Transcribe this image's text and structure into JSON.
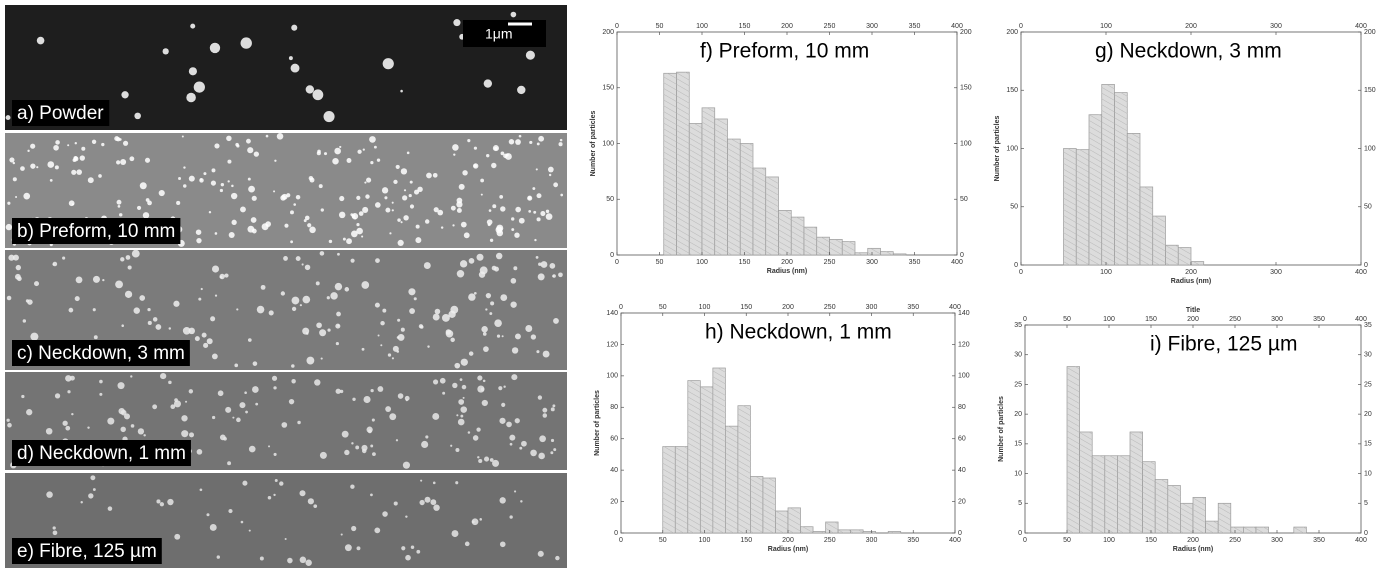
{
  "images": {
    "scale_bar": "1μm",
    "panels": [
      "a) Powder",
      "b) Preform, 10 mm",
      "c) Neckdown, 3 mm",
      "d) Neckdown, 1 mm",
      "e) Fibre, 125 µm"
    ]
  },
  "chart_data": [
    {
      "type": "histogram",
      "title": "f) Preform, 10 mm",
      "x_label": "Radius (nm)",
      "y_label": "Number of particles",
      "color": "#dcdcdc",
      "bins": [
        55,
        70,
        85,
        100,
        115,
        130,
        145,
        160,
        175,
        190,
        205,
        220,
        235,
        250,
        265,
        280,
        295,
        310,
        325,
        340
      ],
      "values": [
        163,
        164,
        118,
        132,
        122,
        104,
        100,
        78,
        70,
        40,
        34,
        25,
        16,
        14,
        12,
        2,
        6,
        3,
        1
      ],
      "xlim": [
        0,
        400
      ],
      "xticks": [
        0,
        50,
        100,
        150,
        200,
        250,
        300,
        350,
        400
      ],
      "ylim": [
        0,
        200
      ],
      "yticks": [
        0,
        50,
        100,
        150,
        200
      ]
    },
    {
      "type": "histogram",
      "title": "g) Neckdown, 3 mm",
      "x_label": "Radius (nm)",
      "y_label": "Number of particles",
      "color": "#dcdcdc",
      "bins": [
        50,
        65,
        80,
        95,
        110,
        125,
        140,
        155,
        170,
        185,
        200,
        215
      ],
      "values": [
        100,
        99,
        129,
        155,
        148,
        113,
        67,
        42,
        17,
        15,
        3
      ],
      "xlim": [
        0,
        400
      ],
      "xticks": [
        0,
        100,
        200,
        300,
        400
      ],
      "ylim": [
        0,
        200
      ],
      "yticks": [
        0,
        50,
        100,
        150,
        200
      ]
    },
    {
      "type": "histogram",
      "title": "h) Neckdown, 1 mm",
      "x_label": "Radius (nm)",
      "y_label": "Number of particles",
      "color": "#dcdcdc",
      "bins": [
        50,
        65,
        80,
        95,
        110,
        125,
        140,
        155,
        170,
        185,
        200,
        215,
        230,
        245,
        260,
        275,
        290,
        305,
        320,
        335
      ],
      "values": [
        55,
        55,
        97,
        93,
        105,
        68,
        81,
        36,
        35,
        14,
        16,
        4,
        1,
        7,
        2,
        2,
        1,
        0,
        1
      ],
      "xlim": [
        0,
        400
      ],
      "xticks": [
        0,
        50,
        100,
        150,
        200,
        250,
        300,
        350,
        400
      ],
      "ylim": [
        0,
        140
      ],
      "yticks": [
        0,
        20,
        40,
        60,
        80,
        100,
        120,
        140
      ]
    },
    {
      "type": "histogram",
      "title": "i) Fibre, 125 µm",
      "top_label": "Title",
      "x_label": "Radius (nm)",
      "y_label": "Number of particles",
      "color": "#dcdcdc",
      "bins": [
        50,
        65,
        80,
        95,
        110,
        125,
        140,
        155,
        170,
        185,
        200,
        215,
        230,
        245,
        260,
        275,
        290,
        305,
        320,
        335
      ],
      "values": [
        28,
        17,
        13,
        13,
        13,
        17,
        12,
        9,
        8,
        5,
        6,
        2,
        5,
        1,
        1,
        1,
        0,
        0,
        1
      ],
      "xlim": [
        0,
        400
      ],
      "xticks": [
        0,
        50,
        100,
        150,
        200,
        250,
        300,
        350,
        400
      ],
      "ylim": [
        0,
        35
      ],
      "yticks": [
        0,
        5,
        10,
        15,
        20,
        25,
        30,
        35
      ]
    }
  ]
}
